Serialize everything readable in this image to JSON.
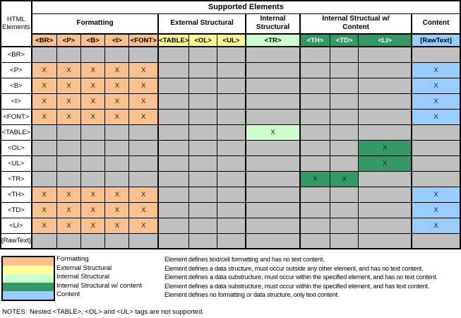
{
  "palette": {
    "formatting": "#FAC090",
    "external_structural": "#FFFF99",
    "internal_structural": "#CCFFCC",
    "internal_structural_content": "#339966",
    "content": "#99CCFF",
    "empty_cell": "#C0C0C0",
    "grid_line": "#000000",
    "header_text_on_dark": "#FFFFFF"
  },
  "matrix": {
    "title": "Supported Elements",
    "corner_label": "HTML Elements",
    "mark": "X",
    "groups": [
      {
        "label": "Formatting",
        "span": 5,
        "category": "formatting"
      },
      {
        "label": "External Structural",
        "span": 3,
        "category": "external_structural"
      },
      {
        "label": "Internal Structural",
        "span": 1,
        "category": "internal_structural"
      },
      {
        "label": "Internal Structual w/ Content",
        "span": 3,
        "category": "internal_structural_content"
      },
      {
        "label": "Content",
        "span": 1,
        "category": "content"
      }
    ],
    "columns": [
      {
        "label": "<BR>",
        "category": "formatting"
      },
      {
        "label": "<P>",
        "category": "formatting"
      },
      {
        "label": "<B>",
        "category": "formatting"
      },
      {
        "label": "<I>",
        "category": "formatting"
      },
      {
        "label": "<FONT>",
        "category": "formatting"
      },
      {
        "label": "<TABLE>",
        "category": "external_structural"
      },
      {
        "label": "<OL>",
        "category": "external_structural"
      },
      {
        "label": "<UL>",
        "category": "external_structural"
      },
      {
        "label": "<TR>",
        "category": "internal_structural"
      },
      {
        "label": "<TH>",
        "category": "internal_structural_content"
      },
      {
        "label": "<TD>",
        "category": "internal_structural_content"
      },
      {
        "label": "<LI>",
        "category": "internal_structural_content"
      },
      {
        "label": "[RawText]",
        "category": "content"
      }
    ],
    "rows": [
      {
        "label": "<BR>",
        "cells": [
          null,
          null,
          null,
          null,
          null,
          null,
          null,
          null,
          null,
          null,
          null,
          null,
          null
        ]
      },
      {
        "label": "<P>",
        "cells": [
          "formatting",
          "formatting",
          "formatting",
          "formatting",
          "formatting",
          null,
          null,
          null,
          null,
          null,
          null,
          null,
          "content"
        ]
      },
      {
        "label": "<B>",
        "cells": [
          "formatting",
          "formatting",
          "formatting",
          "formatting",
          "formatting",
          null,
          null,
          null,
          null,
          null,
          null,
          null,
          "content"
        ]
      },
      {
        "label": "<I>",
        "cells": [
          "formatting",
          "formatting",
          "formatting",
          "formatting",
          "formatting",
          null,
          null,
          null,
          null,
          null,
          null,
          null,
          "content"
        ]
      },
      {
        "label": "<FONT>",
        "cells": [
          "formatting",
          "formatting",
          "formatting",
          "formatting",
          "formatting",
          null,
          null,
          null,
          null,
          null,
          null,
          null,
          "content"
        ]
      },
      {
        "label": "<TABLE>",
        "cells": [
          null,
          null,
          null,
          null,
          null,
          null,
          null,
          null,
          "internal_structural",
          null,
          null,
          null,
          null
        ]
      },
      {
        "label": "<OL>",
        "cells": [
          null,
          null,
          null,
          null,
          null,
          null,
          null,
          null,
          null,
          null,
          null,
          "internal_structural_content",
          null
        ]
      },
      {
        "label": "<UL>",
        "cells": [
          null,
          null,
          null,
          null,
          null,
          null,
          null,
          null,
          null,
          null,
          null,
          "internal_structural_content",
          null
        ]
      },
      {
        "label": "<TR>",
        "cells": [
          null,
          null,
          null,
          null,
          null,
          null,
          null,
          null,
          null,
          "internal_structural_content",
          "internal_structural_content",
          null,
          null
        ]
      },
      {
        "label": "<TH>",
        "cells": [
          "formatting",
          "formatting",
          "formatting",
          "formatting",
          "formatting",
          null,
          null,
          null,
          null,
          null,
          null,
          null,
          "content"
        ]
      },
      {
        "label": "<TD>",
        "cells": [
          "formatting",
          "formatting",
          "formatting",
          "formatting",
          "formatting",
          null,
          null,
          null,
          null,
          null,
          null,
          null,
          "content"
        ]
      },
      {
        "label": "<LI>",
        "cells": [
          "formatting",
          "formatting",
          "formatting",
          "formatting",
          "formatting",
          null,
          null,
          null,
          null,
          null,
          null,
          null,
          "content"
        ]
      },
      {
        "label": "[RawText]",
        "cells": [
          null,
          null,
          null,
          null,
          null,
          null,
          null,
          null,
          null,
          null,
          null,
          null,
          null
        ]
      }
    ]
  },
  "legend": {
    "entries": [
      {
        "category": "formatting",
        "label": "Formatting",
        "description": "Element defines text/cell formatting and has no text content."
      },
      {
        "category": "external_structural",
        "label": "External Structural",
        "description": "Element defines a data structure, must occur outside any other element, and has no text content."
      },
      {
        "category": "internal_structural",
        "label": "Internal Structural",
        "description": "Element defines a data substructure, must occur within the specified element, and has no text content."
      },
      {
        "category": "internal_structural_content",
        "label": "Internal Structural w/ content",
        "description": "Element defines a data substructure, must occur within the specified element, and has text content."
      },
      {
        "category": "content",
        "label": "Content",
        "description": "Element defines no formatting or data structure, only text content."
      }
    ]
  },
  "notes": {
    "label": "NOTES:",
    "text": "Nested <TABLE>, <OL> and <UL> tags are not supported."
  }
}
